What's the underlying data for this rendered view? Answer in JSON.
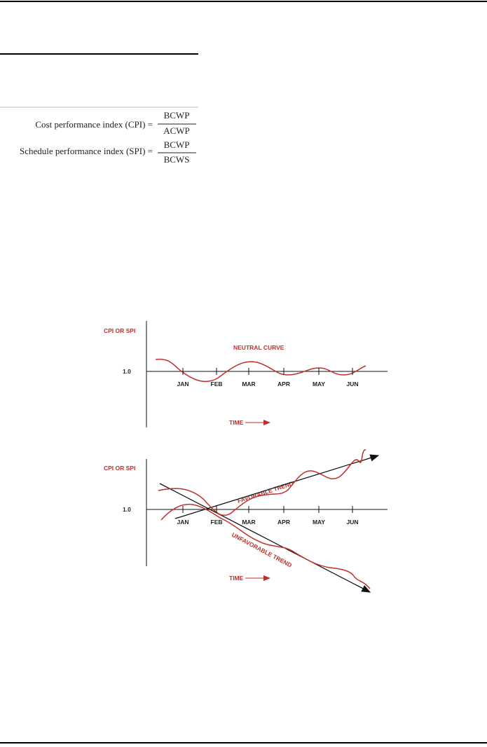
{
  "formulas": [
    {
      "label": "Cost performance index (CPI) =",
      "numerator": "BCWP",
      "denominator": "ACWP"
    },
    {
      "label": "Schedule performance index (SPI) =",
      "numerator": "BCWP",
      "denominator": "BCWS"
    }
  ],
  "diagrams": [
    {
      "y_label": "CPI OR SPI",
      "baseline_label": "1.0",
      "months": [
        "JAN",
        "FEB",
        "MAR",
        "APR",
        "MAY",
        "JUN"
      ],
      "curve_label": "NEUTRAL CURVE",
      "x_label": "TIME"
    },
    {
      "y_label": "CPI OR SPI",
      "baseline_label": "1.0",
      "months": [
        "JAN",
        "FEB",
        "MAR",
        "APR",
        "MAY",
        "JUN"
      ],
      "trend_labels": [
        "FAVORABLE TREND",
        "UNFAVORABLE TREND"
      ],
      "x_label": "TIME"
    }
  ]
}
